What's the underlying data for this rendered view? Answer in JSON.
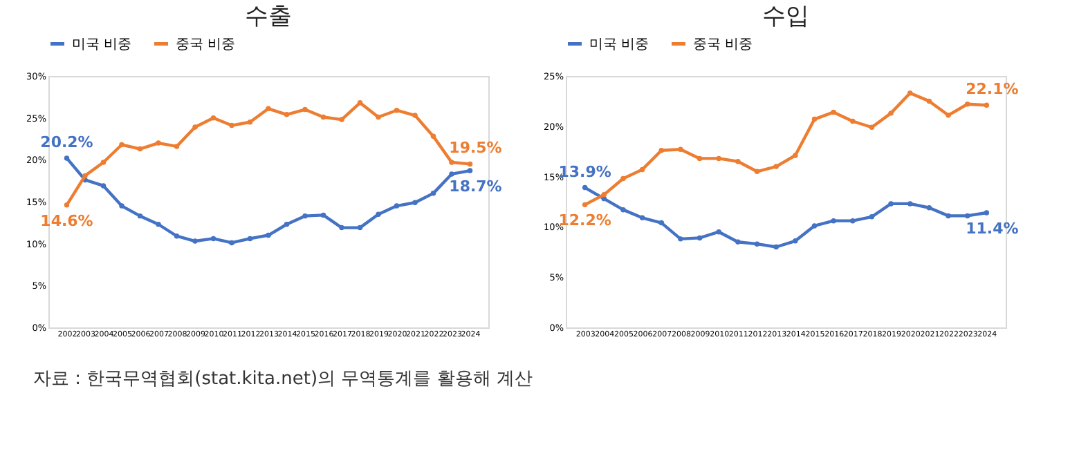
{
  "chart_data": [
    {
      "type": "line",
      "title": "수출",
      "categories": [
        "2002",
        "2003",
        "2004",
        "2005",
        "2006",
        "2007",
        "2008",
        "2009",
        "2010",
        "2011",
        "2012",
        "2013",
        "2014",
        "2015",
        "2016",
        "2017",
        "2018",
        "2019",
        "2020",
        "2021",
        "2022",
        "2023",
        "2024"
      ],
      "series": [
        {
          "name": "미국 비중",
          "color": "#4472c4",
          "values": [
            20.2,
            17.6,
            16.9,
            14.5,
            13.3,
            12.3,
            10.9,
            10.3,
            10.6,
            10.1,
            10.6,
            11.0,
            12.3,
            13.3,
            13.4,
            11.9,
            11.9,
            13.5,
            14.5,
            14.9,
            16.0,
            18.3,
            18.7
          ],
          "value_labels": [
            "20.2%",
            null,
            null,
            null,
            null,
            null,
            null,
            null,
            null,
            null,
            null,
            null,
            null,
            null,
            null,
            null,
            null,
            null,
            null,
            null,
            null,
            null,
            "18.7%"
          ]
        },
        {
          "name": "중국 비중",
          "color": "#ed7d31",
          "values": [
            14.6,
            18.1,
            19.7,
            21.8,
            21.3,
            22.0,
            21.6,
            23.9,
            25.0,
            24.1,
            24.5,
            26.1,
            25.4,
            26.0,
            25.1,
            24.8,
            26.8,
            25.1,
            25.9,
            25.3,
            22.8,
            19.7,
            19.5
          ],
          "value_labels": [
            "14.6%",
            null,
            null,
            null,
            null,
            null,
            null,
            null,
            null,
            null,
            null,
            null,
            null,
            null,
            null,
            null,
            null,
            null,
            null,
            null,
            null,
            null,
            "19.5%"
          ]
        }
      ],
      "ylim": [
        0,
        30
      ],
      "yticks": [
        {
          "value": 0,
          "label": "0%"
        },
        {
          "value": 5,
          "label": "5%"
        },
        {
          "value": 10,
          "label": "10%"
        },
        {
          "value": 15,
          "label": "15%"
        },
        {
          "value": 20,
          "label": "20%"
        },
        {
          "value": 25,
          "label": "25%"
        },
        {
          "value": 30,
          "label": "30%"
        }
      ],
      "marker": "circle",
      "legend": "top",
      "annotations": [
        "자료 : 한국무역협회(stat.kita.net)의 무역통계를 활용해 계산"
      ]
    },
    {
      "type": "line",
      "title": "수입",
      "categories": [
        "2003",
        "2004",
        "2005",
        "2006",
        "2007",
        "2008",
        "2009",
        "2010",
        "2011",
        "2012",
        "2013",
        "2014",
        "2015",
        "2016",
        "2017",
        "2018",
        "2019",
        "2020",
        "2021",
        "2022",
        "2023",
        "2024"
      ],
      "series": [
        {
          "name": "미국 비중",
          "color": "#4472c4",
          "values": [
            13.9,
            12.8,
            11.7,
            10.9,
            10.4,
            8.8,
            8.9,
            9.5,
            8.5,
            8.3,
            8.0,
            8.6,
            10.1,
            10.6,
            10.6,
            11.0,
            12.3,
            12.3,
            11.9,
            11.1,
            11.1,
            11.4
          ],
          "value_labels": [
            "13.9%",
            null,
            null,
            null,
            null,
            null,
            null,
            null,
            null,
            null,
            null,
            null,
            null,
            null,
            null,
            null,
            null,
            null,
            null,
            null,
            null,
            "11.4%"
          ]
        },
        {
          "name": "중국 비중",
          "color": "#ed7d31",
          "values": [
            12.2,
            13.2,
            14.8,
            15.7,
            17.6,
            17.7,
            16.8,
            16.8,
            16.5,
            15.5,
            16.0,
            17.1,
            20.7,
            21.4,
            20.5,
            19.9,
            21.3,
            23.3,
            22.5,
            21.1,
            22.2,
            22.1
          ],
          "value_labels": [
            "12.2%",
            null,
            null,
            null,
            null,
            null,
            null,
            null,
            null,
            null,
            null,
            null,
            null,
            null,
            null,
            null,
            null,
            null,
            null,
            null,
            null,
            "22.1%"
          ]
        }
      ],
      "ylim": [
        0,
        25
      ],
      "yticks": [
        {
          "value": 0,
          "label": "0%"
        },
        {
          "value": 5,
          "label": "5%"
        },
        {
          "value": 10,
          "label": "10%"
        },
        {
          "value": 15,
          "label": "15%"
        },
        {
          "value": 20,
          "label": "20%"
        },
        {
          "value": 25,
          "label": "25%"
        }
      ],
      "marker": "circle",
      "legend": "top"
    }
  ]
}
